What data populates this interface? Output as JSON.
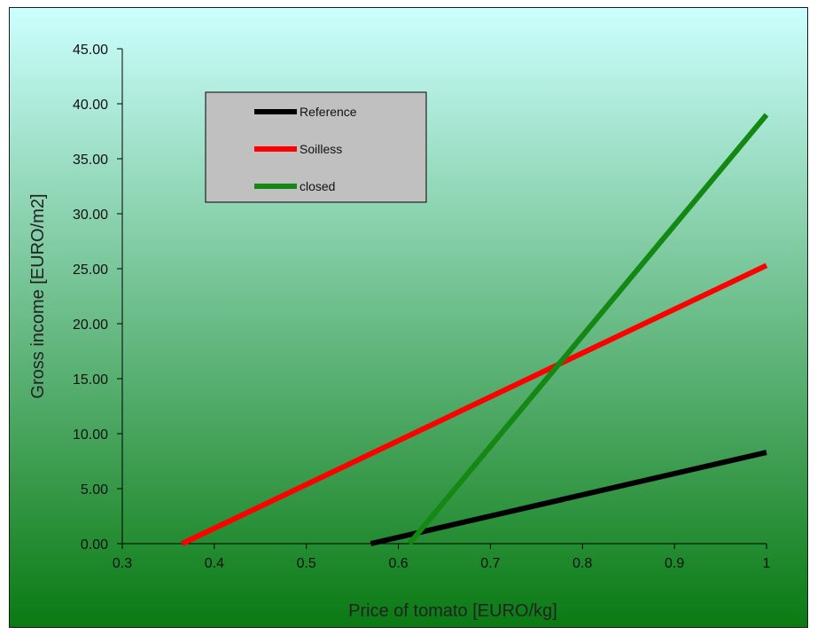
{
  "chart_data": {
    "type": "line",
    "title": "",
    "xlabel": "Price of tomato [EURO/kg]",
    "ylabel": "Gross income [EURO/m2]",
    "xlim": [
      0.3,
      1.0
    ],
    "ylim": [
      0.0,
      45.0
    ],
    "x_ticks": [
      "0.3",
      "0.4",
      "0.5",
      "0.6",
      "0.7",
      "0.8",
      "0.9",
      "1"
    ],
    "y_ticks": [
      "0.00",
      "5.00",
      "10.00",
      "15.00",
      "20.00",
      "25.00",
      "30.00",
      "35.00",
      "40.00",
      "45.00"
    ],
    "grid": false,
    "legend_position": "top-left",
    "background": {
      "top_color": "#ccffff",
      "bottom_color": "#0a7a12"
    },
    "series": [
      {
        "name": "Reference",
        "color": "#000000",
        "x": [
          0.57,
          1.0
        ],
        "y": [
          0.0,
          8.3
        ]
      },
      {
        "name": "Soilless",
        "color": "#ff0000",
        "x": [
          0.365,
          1.0
        ],
        "y": [
          0.0,
          25.3
        ]
      },
      {
        "name": "closed",
        "color": "#138813",
        "x": [
          0.612,
          1.0
        ],
        "y": [
          0.0,
          39.0
        ]
      }
    ]
  }
}
